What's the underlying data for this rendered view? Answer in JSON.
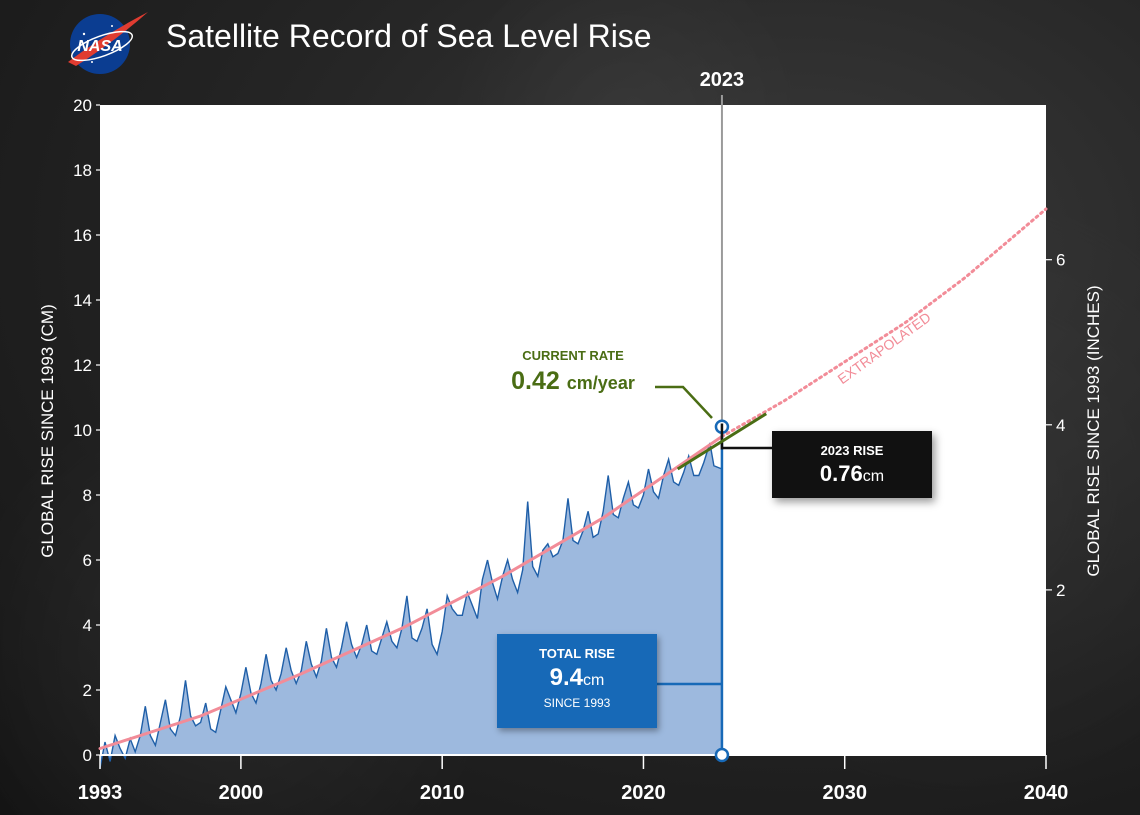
{
  "logo_text": "NASA",
  "title": "Satellite Record of Sea Level Rise",
  "colors": {
    "area_fill": "#9db9de",
    "data_line": "#1f5fa8",
    "trend_line": "#f28c98",
    "rate_green": "#4a6d14",
    "marker_blue": "#1769b7",
    "total_box": "#1769b7",
    "rise_box": "#111111"
  },
  "labels": {
    "ylabel_left": "GLOBAL RISE SINCE 1993 (CM)",
    "ylabel_right": "GLOBAL RISE SINCE 1993 (INCHES)",
    "year_marker": "2023",
    "extrapolated": "EXTRAPOLATED"
  },
  "callouts": {
    "rate_title": "CURRENT RATE",
    "rate_value": "0.42",
    "rate_unit": "cm/year",
    "rise_title": "2023 RISE",
    "rise_value": "0.76",
    "rise_unit": "cm",
    "total_title": "TOTAL RISE",
    "total_value": "9.4",
    "total_unit": "cm",
    "total_since": "SINCE 1993"
  },
  "chart_data": {
    "type": "area",
    "title": "Satellite Record of Sea Level Rise",
    "xlabel": "",
    "ylabel": "GLOBAL RISE SINCE 1993 (CM)",
    "ylabel_right": "GLOBAL RISE SINCE 1993 (INCHES)",
    "xlim": [
      1993,
      2040
    ],
    "ylim": [
      0,
      20
    ],
    "xticks": [
      "1993",
      "2000",
      "2010",
      "2020",
      "2030",
      "2040"
    ],
    "xtick_values": [
      1993,
      2000,
      2010,
      2020,
      2030,
      2040
    ],
    "yticks": [
      "0",
      "2",
      "4",
      "6",
      "8",
      "10",
      "12",
      "14",
      "16",
      "18",
      "20"
    ],
    "yticks_right": [
      "2",
      "4",
      "6"
    ],
    "yticks_right_cm": [
      5.08,
      10.16,
      15.24
    ],
    "grid": false,
    "series": [
      {
        "x": [
          1993.0,
          1993.25,
          1993.5,
          1993.75,
          1994.0,
          1994.25,
          1994.5,
          1994.75,
          1995.0,
          1995.25,
          1995.5,
          1995.75,
          1996.0,
          1996.25,
          1996.5,
          1996.75,
          1997.0,
          1997.25,
          1997.5,
          1997.75,
          1998.0,
          1998.25,
          1998.5,
          1998.75,
          1999.0,
          1999.25,
          1999.5,
          1999.75,
          2000.0,
          2000.25,
          2000.5,
          2000.75,
          2001.0,
          2001.25,
          2001.5,
          2001.75,
          2002.0,
          2002.25,
          2002.5,
          2002.75,
          2003.0,
          2003.25,
          2003.5,
          2003.75,
          2004.0,
          2004.25,
          2004.5,
          2004.75,
          2005.0,
          2005.25,
          2005.5,
          2005.75,
          2006.0,
          2006.25,
          2006.5,
          2006.75,
          2007.0,
          2007.25,
          2007.5,
          2007.75,
          2008.0,
          2008.25,
          2008.5,
          2008.75,
          2009.0,
          2009.25,
          2009.5,
          2009.75,
          2010.0,
          2010.25,
          2010.5,
          2010.75,
          2011.0,
          2011.25,
          2011.5,
          2011.75,
          2012.0,
          2012.25,
          2012.5,
          2012.75,
          2013.0,
          2013.25,
          2013.5,
          2013.75,
          2014.0,
          2014.25,
          2014.5,
          2014.75,
          2015.0,
          2015.25,
          2015.5,
          2015.75,
          2016.0,
          2016.25,
          2016.5,
          2016.75,
          2017.0,
          2017.25,
          2017.5,
          2017.75,
          2018.0,
          2018.25,
          2018.5,
          2018.75,
          2019.0,
          2019.25,
          2019.5,
          2019.75,
          2020.0,
          2020.25,
          2020.5,
          2020.75,
          2021.0,
          2021.25,
          2021.5,
          2021.75,
          2022.0,
          2022.25,
          2022.5,
          2022.75,
          2023.0,
          2023.3,
          2023.5,
          2023.9
        ],
        "values": [
          -0.4,
          0.4,
          -0.2,
          0.6,
          0.2,
          -0.1,
          0.5,
          0.1,
          0.6,
          1.5,
          0.6,
          0.3,
          1.0,
          1.7,
          0.8,
          0.6,
          1.2,
          2.3,
          1.2,
          0.9,
          1.0,
          1.6,
          0.8,
          0.7,
          1.4,
          2.1,
          1.7,
          1.3,
          1.9,
          2.7,
          1.9,
          1.6,
          2.2,
          3.1,
          2.3,
          2.0,
          2.5,
          3.3,
          2.6,
          2.2,
          2.6,
          3.5,
          2.8,
          2.4,
          2.9,
          3.9,
          3.0,
          2.7,
          3.3,
          4.1,
          3.4,
          3.0,
          3.4,
          4.0,
          3.2,
          3.1,
          3.6,
          4.1,
          3.5,
          3.3,
          3.9,
          4.9,
          3.6,
          3.5,
          3.9,
          4.5,
          3.4,
          3.1,
          3.8,
          4.9,
          4.5,
          4.3,
          4.3,
          5.0,
          4.6,
          4.2,
          5.4,
          6.0,
          5.3,
          4.8,
          5.5,
          6.0,
          5.4,
          5.0,
          5.7,
          7.8,
          5.8,
          5.5,
          6.3,
          6.5,
          6.1,
          6.2,
          6.6,
          7.9,
          6.6,
          6.5,
          6.9,
          7.5,
          6.7,
          6.8,
          7.5,
          8.6,
          7.4,
          7.3,
          7.9,
          8.4,
          7.7,
          7.6,
          8.0,
          8.8,
          8.1,
          7.9,
          8.6,
          9.1,
          8.4,
          8.3,
          8.7,
          9.2,
          8.6,
          8.6,
          9.0,
          9.6,
          8.9,
          8.8
        ]
      }
    ],
    "trend": {
      "name": "",
      "x": [
        1993,
        1998,
        2003,
        2008,
        2013,
        2018,
        2023.9
      ],
      "values": [
        0.2,
        1.2,
        2.5,
        3.9,
        5.5,
        7.3,
        9.8
      ],
      "extrapolated_x": [
        2023.9,
        2027,
        2030,
        2033,
        2036,
        2040
      ],
      "extrapolated_values": [
        9.8,
        10.9,
        12.1,
        13.3,
        14.7,
        16.8
      ]
    },
    "marker_year": 2023,
    "annotations": [
      {
        "text": "CURRENT RATE 0.42 cm/year"
      },
      {
        "text": "2023 RISE 0.76cm"
      },
      {
        "text": "TOTAL RISE 9.4cm SINCE 1993"
      },
      {
        "text": "EXTRAPOLATED"
      }
    ]
  }
}
